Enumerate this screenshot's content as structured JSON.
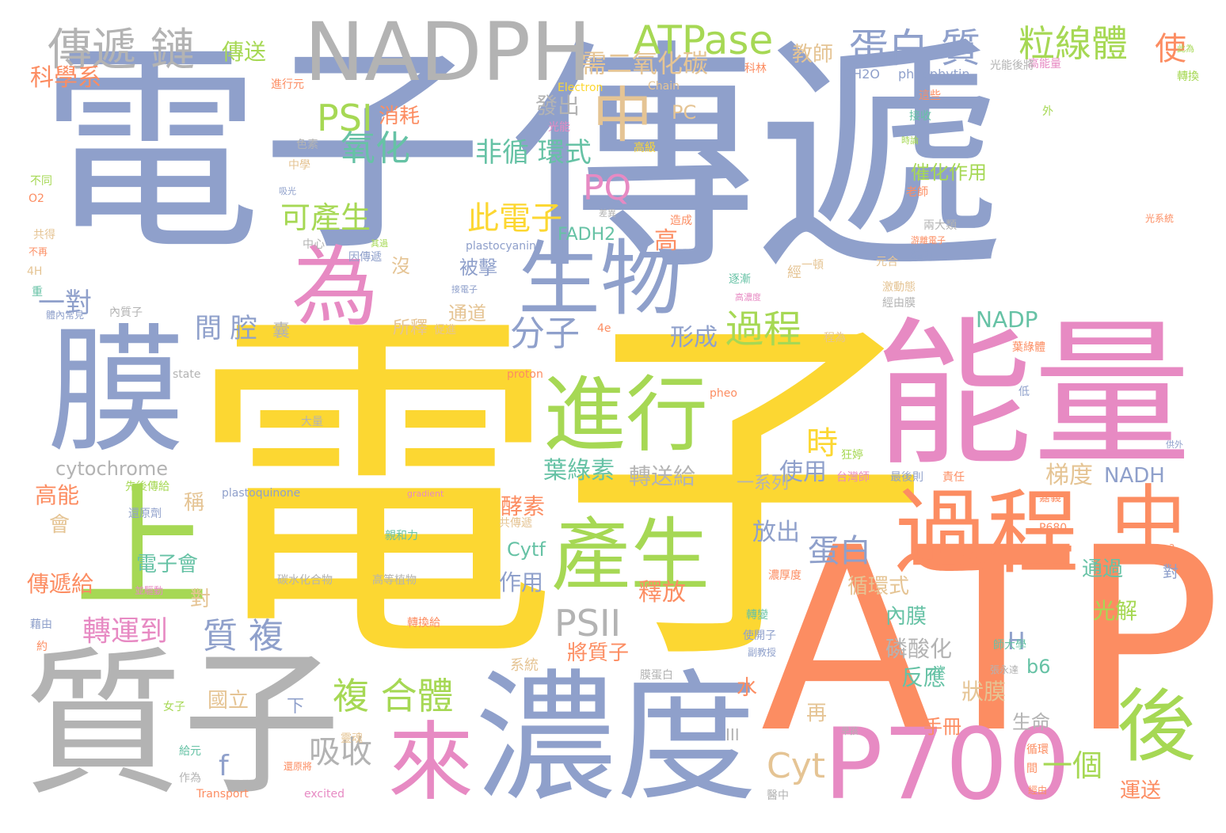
{
  "colors": {
    "blue": "#8fa0cb",
    "yellow": "#fcd732",
    "orange": "#fc8d62",
    "green": "#a6d854",
    "pink": "#e78ac3",
    "gray": "#b3b3b3",
    "teal": "#66c2a5",
    "tan": "#e5c494",
    "background": "#ffffff"
  },
  "words": [
    {
      "text": "電子",
      "c": "blue"
    },
    {
      "text": "傳遞",
      "c": "blue"
    },
    {
      "text": "電子",
      "c": "yellow"
    },
    {
      "text": "ATP",
      "c": "orange"
    },
    {
      "text": "質子",
      "c": "gray"
    },
    {
      "text": "能量",
      "c": "pink"
    },
    {
      "text": "NADPH",
      "c": "gray"
    },
    {
      "text": "膜",
      "c": "blue"
    },
    {
      "text": "濃度",
      "c": "blue"
    },
    {
      "text": "過程",
      "c": "orange"
    },
    {
      "text": "中",
      "c": "orange"
    },
    {
      "text": "P700",
      "c": "pink"
    },
    {
      "text": "為",
      "c": "pink"
    },
    {
      "text": "生物",
      "c": "blue"
    },
    {
      "text": "進行",
      "c": "green"
    },
    {
      "text": "產生",
      "c": "green"
    },
    {
      "text": "上",
      "c": "green"
    },
    {
      "text": "來",
      "c": "pink"
    },
    {
      "text": "後",
      "c": "green"
    },
    {
      "text": "中",
      "c": "tan"
    },
    {
      "text": "傳遞 鏈",
      "c": "gray"
    },
    {
      "text": "ATPase",
      "c": "green"
    },
    {
      "text": "蛋白 質",
      "c": "blue"
    },
    {
      "text": "粒線體",
      "c": "green"
    },
    {
      "text": "複 合體",
      "c": "green"
    },
    {
      "text": "過程",
      "c": "green"
    },
    {
      "text": "分子",
      "c": "blue"
    },
    {
      "text": "氧化",
      "c": "teal"
    },
    {
      "text": "PSI",
      "c": "green"
    },
    {
      "text": "PSII",
      "c": "gray"
    },
    {
      "text": "PQ",
      "c": "pink"
    },
    {
      "text": "Cyt",
      "c": "tan"
    },
    {
      "text": "可產生",
      "c": "green"
    },
    {
      "text": "此電子",
      "c": "yellow"
    },
    {
      "text": "非循 環式",
      "c": "teal"
    },
    {
      "text": "需二氧化碳",
      "c": "tan"
    },
    {
      "text": "轉運到",
      "c": "pink"
    },
    {
      "text": "質 複",
      "c": "blue"
    },
    {
      "text": "吸收",
      "c": "gray"
    },
    {
      "text": "蛋白",
      "c": "blue"
    },
    {
      "text": "間 腔",
      "c": "blue"
    },
    {
      "text": "一對",
      "c": "blue"
    },
    {
      "text": "傳送",
      "c": "green"
    },
    {
      "text": "時",
      "c": "yellow"
    },
    {
      "text": "一個",
      "c": "green"
    },
    {
      "text": "發出",
      "c": "gray"
    },
    {
      "text": "消耗",
      "c": "orange"
    },
    {
      "text": "形成",
      "c": "blue"
    },
    {
      "text": "使用",
      "c": "blue"
    },
    {
      "text": "梯度",
      "c": "tan"
    },
    {
      "text": "NADH",
      "c": "blue"
    },
    {
      "text": "NADP",
      "c": "teal"
    },
    {
      "text": "葉綠素",
      "c": "teal"
    },
    {
      "text": "轉送給",
      "c": "gray"
    },
    {
      "text": "cytochrome",
      "c": "gray"
    },
    {
      "text": "酵素",
      "c": "orange"
    },
    {
      "text": "放出",
      "c": "blue"
    },
    {
      "text": "釋放",
      "c": "orange"
    },
    {
      "text": "循環式",
      "c": "tan"
    },
    {
      "text": "內膜",
      "c": "teal"
    },
    {
      "text": "磷酸化",
      "c": "gray"
    },
    {
      "text": "反應",
      "c": "teal"
    },
    {
      "text": "狀膜",
      "c": "tan"
    },
    {
      "text": "將質子",
      "c": "orange"
    },
    {
      "text": "傳遞給",
      "c": "orange"
    },
    {
      "text": "電子會",
      "c": "teal"
    },
    {
      "text": "作用",
      "c": "blue"
    },
    {
      "text": "通過",
      "c": "teal"
    },
    {
      "text": "光解",
      "c": "green"
    },
    {
      "text": "運送",
      "c": "orange"
    },
    {
      "text": "手冊",
      "c": "orange"
    },
    {
      "text": "生命",
      "c": "gray"
    },
    {
      "text": "國立",
      "c": "tan"
    },
    {
      "text": "催化作用",
      "c": "green"
    },
    {
      "text": "被擊",
      "c": "blue"
    },
    {
      "text": "通道",
      "c": "tan"
    },
    {
      "text": "所釋",
      "c": "tan"
    },
    {
      "text": "高能",
      "c": "orange"
    },
    {
      "text": "教師",
      "c": "tan"
    },
    {
      "text": "FADH2",
      "c": "teal"
    },
    {
      "text": "PC",
      "c": "tan"
    },
    {
      "text": "Cytf",
      "c": "teal"
    },
    {
      "text": "b6",
      "c": "teal"
    },
    {
      "text": "H",
      "c": "blue"
    },
    {
      "text": "f",
      "c": "blue"
    },
    {
      "text": "高",
      "c": "orange"
    },
    {
      "text": "沒",
      "c": "tan"
    },
    {
      "text": "稱",
      "c": "tan"
    },
    {
      "text": "會",
      "c": "tan"
    },
    {
      "text": "對",
      "c": "tan"
    },
    {
      "text": "再",
      "c": "tan"
    },
    {
      "text": "水",
      "c": "orange"
    },
    {
      "text": "下",
      "c": "blue"
    },
    {
      "text": "III",
      "c": "gray"
    },
    {
      "text": "一系列",
      "c": "blue"
    },
    {
      "text": "2H2O",
      "c": "blue"
    },
    {
      "text": "pheophytin",
      "c": "pink"
    },
    {
      "text": "高能量",
      "c": "orange"
    },
    {
      "text": "科林",
      "c": "gray"
    },
    {
      "text": "光能後將",
      "c": "orange"
    },
    {
      "text": "進行元",
      "c": "tan"
    },
    {
      "text": "Chain",
      "c": "yellow"
    },
    {
      "text": "Electron",
      "c": "teal"
    },
    {
      "text": "接收",
      "c": "orange"
    },
    {
      "text": "這些",
      "c": "green"
    },
    {
      "text": "外",
      "c": "green"
    },
    {
      "text": "轉換",
      "c": "gray"
    },
    {
      "text": "色素",
      "c": "pink"
    },
    {
      "text": "光能",
      "c": "yellow"
    },
    {
      "text": "高級",
      "c": "tan"
    },
    {
      "text": "中學",
      "c": "green"
    },
    {
      "text": "不同",
      "c": "orange"
    },
    {
      "text": "O2",
      "c": "tan"
    },
    {
      "text": "共得",
      "c": "orange"
    },
    {
      "text": "不再",
      "c": "tan"
    },
    {
      "text": "4H",
      "c": "teal"
    },
    {
      "text": "重",
      "c": "blue"
    },
    {
      "text": "體內常見",
      "c": "gray"
    },
    {
      "text": "內質子",
      "c": "gray"
    },
    {
      "text": "中心",
      "c": "blue"
    },
    {
      "text": "因傳遞",
      "c": "blue"
    },
    {
      "text": "plastocyanin",
      "c": "gray"
    },
    {
      "text": "差異",
      "c": "orange"
    },
    {
      "text": "造成",
      "c": "orange"
    },
    {
      "text": "老師",
      "c": "gray"
    },
    {
      "text": "兩大類",
      "c": "blue"
    },
    {
      "text": "編輯",
      "c": "tan"
    },
    {
      "text": "元合",
      "c": "tan"
    },
    {
      "text": "激動態",
      "c": "gray"
    },
    {
      "text": "經由膜",
      "c": "tan"
    },
    {
      "text": "程為",
      "c": "orange"
    },
    {
      "text": "葉綠體",
      "c": "orange"
    },
    {
      "text": "proton",
      "c": "gray"
    },
    {
      "text": "state",
      "c": "gray"
    },
    {
      "text": "大量",
      "c": "orange"
    },
    {
      "text": "pheo",
      "c": "blue"
    },
    {
      "text": "低",
      "c": "green"
    },
    {
      "text": "狂婷",
      "c": "pink"
    },
    {
      "text": "台灣師",
      "c": "blue"
    },
    {
      "text": "最後則",
      "c": "orange"
    },
    {
      "text": "責任",
      "c": "orange"
    },
    {
      "text": "嘉義",
      "c": "orange"
    },
    {
      "text": "P680",
      "c": "blue"
    },
    {
      "text": "plastoquinone",
      "c": "pink"
    },
    {
      "text": "gradient",
      "c": "teal"
    },
    {
      "text": "親和力",
      "c": "gray"
    },
    {
      "text": "碳水化合物",
      "c": "gray"
    },
    {
      "text": "高等植物",
      "c": "orange"
    },
    {
      "text": "轉換給",
      "c": "blue"
    },
    {
      "text": "還原劑",
      "c": "green"
    },
    {
      "text": "先後傳給",
      "c": "tan"
    },
    {
      "text": "共傳遞",
      "c": "pink"
    },
    {
      "text": "並驅動",
      "c": "blue"
    },
    {
      "text": "藉由",
      "c": "orange"
    },
    {
      "text": "約",
      "c": "tan"
    },
    {
      "text": "系統",
      "c": "green"
    },
    {
      "text": "女子",
      "c": "teal"
    },
    {
      "text": "給元",
      "c": "gray"
    },
    {
      "text": "作為",
      "c": "orange"
    },
    {
      "text": "Transport",
      "c": "pink"
    },
    {
      "text": "excited",
      "c": "tan"
    },
    {
      "text": "靈魂",
      "c": "gray"
    },
    {
      "text": "醫中",
      "c": "orange"
    },
    {
      "text": "還原將",
      "c": "teal"
    },
    {
      "text": "轉變",
      "c": "blue"
    },
    {
      "text": "使開子",
      "c": "blue"
    },
    {
      "text": "副教授",
      "c": "gray"
    },
    {
      "text": "膜蛋白",
      "c": "teal"
    },
    {
      "text": "一次",
      "c": "gray"
    },
    {
      "text": "張永達",
      "c": "teal"
    },
    {
      "text": "師大學",
      "c": "orange"
    },
    {
      "text": "循環",
      "c": "orange"
    },
    {
      "text": "經由",
      "c": "orange"
    },
    {
      "text": "間",
      "c": "blue"
    },
    {
      "text": "對",
      "c": "orange"
    },
    {
      "text": "a",
      "c": "tan"
    },
    {
      "text": "經",
      "c": "gray"
    },
    {
      "text": "囊",
      "c": "orange"
    },
    {
      "text": "科學系",
      "c": "orange"
    },
    {
      "text": "4e",
      "c": "tan"
    },
    {
      "text": "促進",
      "c": "teal"
    },
    {
      "text": "逐漸",
      "c": "orange"
    },
    {
      "text": "濃厚度",
      "c": "pink"
    },
    {
      "text": "高濃度",
      "c": "orange"
    },
    {
      "text": "游離電子",
      "c": "orange"
    },
    {
      "text": "光系統",
      "c": "green"
    },
    {
      "text": "其過",
      "c": "tan"
    },
    {
      "text": "一頓",
      "c": "blue"
    },
    {
      "text": "吸光",
      "c": "blue"
    },
    {
      "text": "接電子",
      "c": "green"
    },
    {
      "text": "時論",
      "c": "green"
    },
    {
      "text": "此為",
      "c": "blue"
    },
    {
      "text": "供外",
      "c": "gray"
    },
    {
      "text": "早孩",
      "c": "gray"
    },
    {
      "text": "使",
      "c": "gray"
    },
    {
      "text": "得",
      "c": "blue"
    },
    {
      "text": "I",
      "c": "orange"
    }
  ]
}
